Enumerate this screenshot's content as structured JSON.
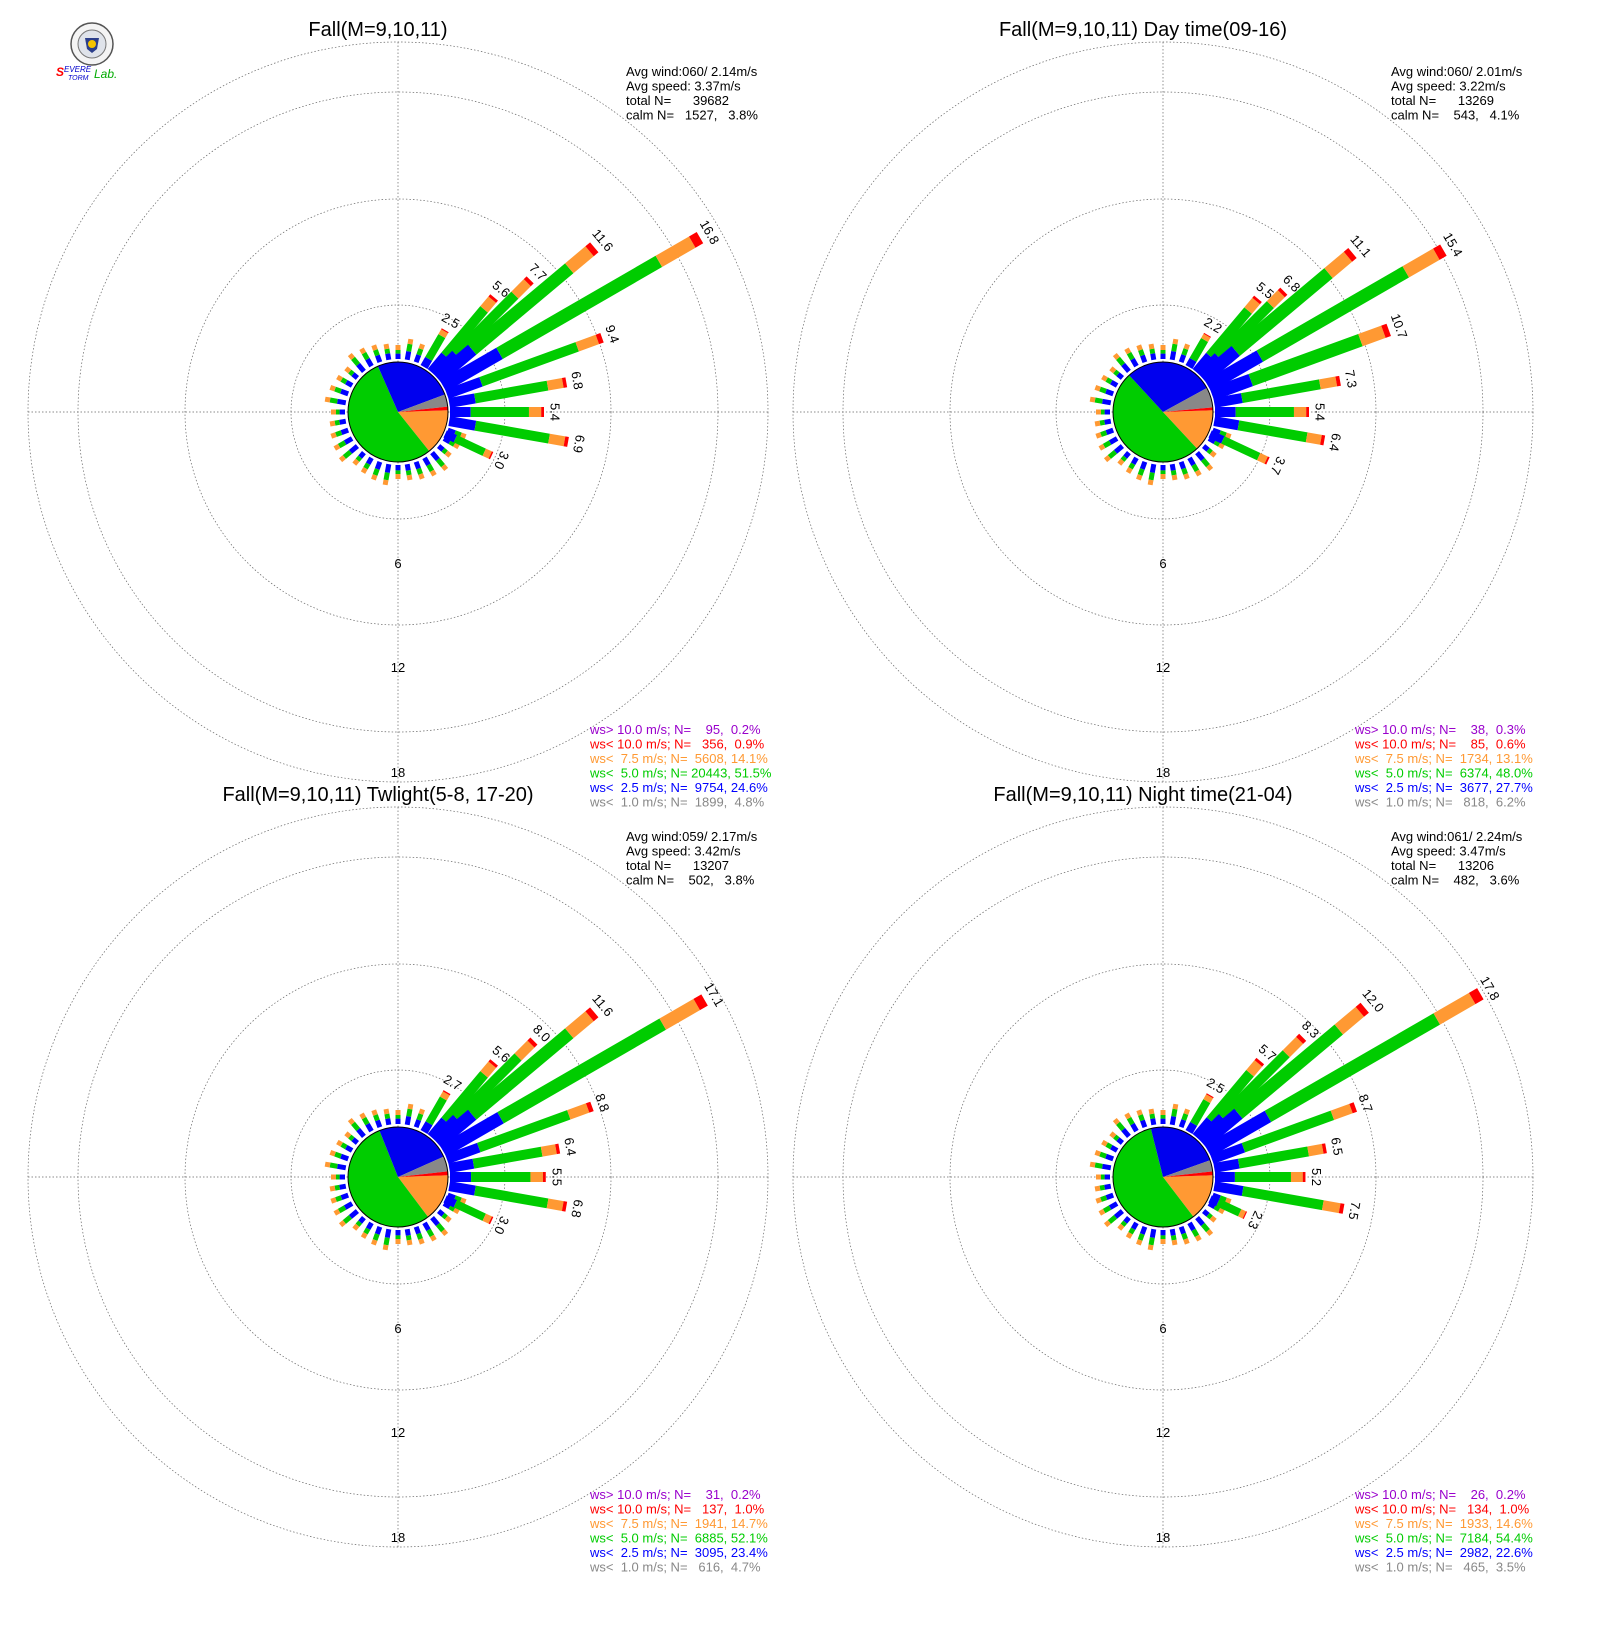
{
  "logo": {
    "text_lines": [
      "SEVERE",
      "STORM",
      "Lab."
    ]
  },
  "ring_labels": [
    "6",
    "12",
    "18"
  ],
  "colors": {
    "calm": "#888888",
    "lt2_5": "#0000ff",
    "lt5": "#00cc00",
    "lt7_5": "#ff9933",
    "lt10": "#ff0000",
    "gt10": "#9900cc",
    "wedge_blue": "#0000ee",
    "wedge_green": "#00cc00",
    "wedge_orange": "#ff9933",
    "wedge_red": "#ff0000",
    "wedge_gray": "#888888"
  },
  "chart_data": [
    {
      "type": "wind-rose",
      "title": "Fall(M=9,10,11)",
      "stats": [
        "Avg wind:060/ 2.14m/s",
        "Avg speed: 3.37m/s",
        "total N=      39682",
        "calm N=   1527,   3.8%"
      ],
      "legend": [
        {
          "text": "ws> 10.0 m/s; N=    95,  0.2%",
          "color": "#9900cc"
        },
        {
          "text": "ws< 10.0 m/s; N=   356,  0.9%",
          "color": "#ff0000"
        },
        {
          "text": "ws<  7.5 m/s; N=  5608, 14.1%",
          "color": "#ff9933"
        },
        {
          "text": "ws<  5.0 m/s; N= 20443, 51.5%",
          "color": "#00cc00"
        },
        {
          "text": "ws<  2.5 m/s; N=  9754, 24.6%",
          "color": "#0000ff"
        },
        {
          "text": "ws<  1.0 m/s; N=  1899,  4.8%",
          "color": "#888888"
        }
      ],
      "labeled_spokes": [
        {
          "dir": 30,
          "label": "2.5"
        },
        {
          "dir": 40,
          "label": "5.6"
        },
        {
          "dir": 45,
          "label": "7.7"
        },
        {
          "dir": 50,
          "label": "11.6"
        },
        {
          "dir": 60,
          "label": "16.8"
        },
        {
          "dir": 70,
          "label": "9.4"
        },
        {
          "dir": 80,
          "label": "6.8"
        },
        {
          "dir": 90,
          "label": "5.4"
        },
        {
          "dir": 100,
          "label": "6.9"
        },
        {
          "dir": 115,
          "label": "3.0"
        }
      ],
      "spokes": [
        {
          "dir": 30,
          "len": 2.5
        },
        {
          "dir": 40,
          "len": 5.6
        },
        {
          "dir": 45,
          "len": 7.7
        },
        {
          "dir": 50,
          "len": 11.6
        },
        {
          "dir": 60,
          "len": 16.8
        },
        {
          "dir": 70,
          "len": 9.4
        },
        {
          "dir": 80,
          "len": 6.8
        },
        {
          "dir": 90,
          "len": 5.4
        },
        {
          "dir": 100,
          "len": 6.9
        },
        {
          "dir": 115,
          "len": 3.0
        }
      ],
      "pie_pct": {
        "calm": 3.8,
        "lt2_5": 24.6,
        "lt5": 51.5,
        "lt7_5": 14.1,
        "lt10": 0.9,
        "gt10": 0.2
      }
    },
    {
      "type": "wind-rose",
      "title": "Fall(M=9,10,11) Day time(09-16)",
      "stats": [
        "Avg wind:060/ 2.01m/s",
        "Avg speed: 3.22m/s",
        "total N=      13269",
        "calm N=    543,   4.1%"
      ],
      "legend": [
        {
          "text": "ws> 10.0 m/s; N=    38,  0.3%",
          "color": "#9900cc"
        },
        {
          "text": "ws< 10.0 m/s; N=    85,  0.6%",
          "color": "#ff0000"
        },
        {
          "text": "ws<  7.5 m/s; N=  1734, 13.1%",
          "color": "#ff9933"
        },
        {
          "text": "ws<  5.0 m/s; N=  6374, 48.0%",
          "color": "#00cc00"
        },
        {
          "text": "ws<  2.5 m/s; N=  3677, 27.7%",
          "color": "#0000ff"
        },
        {
          "text": "ws<  1.0 m/s; N=   818,  6.2%",
          "color": "#888888"
        }
      ],
      "spokes": [
        {
          "dir": 30,
          "len": 2.2
        },
        {
          "dir": 40,
          "len": 5.5
        },
        {
          "dir": 45,
          "len": 6.8
        },
        {
          "dir": 50,
          "len": 11.1
        },
        {
          "dir": 60,
          "len": 15.4
        },
        {
          "dir": 70,
          "len": 10.7
        },
        {
          "dir": 80,
          "len": 7.3
        },
        {
          "dir": 90,
          "len": 5.4
        },
        {
          "dir": 100,
          "len": 6.4
        },
        {
          "dir": 115,
          "len": 3.7
        }
      ],
      "labeled_spokes": [
        {
          "dir": 30,
          "label": "2.2"
        },
        {
          "dir": 40,
          "label": "5.5"
        },
        {
          "dir": 45,
          "label": "6.8"
        },
        {
          "dir": 50,
          "label": "11.1"
        },
        {
          "dir": 60,
          "label": "15.4"
        },
        {
          "dir": 70,
          "label": "10.7"
        },
        {
          "dir": 80,
          "label": "7.3"
        },
        {
          "dir": 90,
          "label": "5.4"
        },
        {
          "dir": 100,
          "label": "6.4"
        },
        {
          "dir": 115,
          "label": "3.7"
        }
      ],
      "pie_pct": {
        "calm": 6.2,
        "lt2_5": 27.7,
        "lt5": 48.0,
        "lt7_5": 13.1,
        "lt10": 0.6,
        "gt10": 0.3
      }
    },
    {
      "type": "wind-rose",
      "title": "Fall(M=9,10,11) Twlight(5-8, 17-20)",
      "stats": [
        "Avg wind:059/ 2.17m/s",
        "Avg speed: 3.42m/s",
        "total N=      13207",
        "calm N=    502,   3.8%"
      ],
      "legend": [
        {
          "text": "ws> 10.0 m/s; N=    31,  0.2%",
          "color": "#9900cc"
        },
        {
          "text": "ws< 10.0 m/s; N=   137,  1.0%",
          "color": "#ff0000"
        },
        {
          "text": "ws<  7.5 m/s; N=  1941, 14.7%",
          "color": "#ff9933"
        },
        {
          "text": "ws<  5.0 m/s; N=  6885, 52.1%",
          "color": "#00cc00"
        },
        {
          "text": "ws<  2.5 m/s; N=  3095, 23.4%",
          "color": "#0000ff"
        },
        {
          "text": "ws<  1.0 m/s; N=   616,  4.7%",
          "color": "#888888"
        }
      ],
      "spokes": [
        {
          "dir": 30,
          "len": 2.7
        },
        {
          "dir": 40,
          "len": 5.6
        },
        {
          "dir": 45,
          "len": 8.0
        },
        {
          "dir": 50,
          "len": 11.6
        },
        {
          "dir": 60,
          "len": 17.1
        },
        {
          "dir": 70,
          "len": 8.8
        },
        {
          "dir": 80,
          "len": 6.4
        },
        {
          "dir": 90,
          "len": 5.5
        },
        {
          "dir": 100,
          "len": 6.8
        },
        {
          "dir": 115,
          "len": 3.0
        }
      ],
      "labeled_spokes": [
        {
          "dir": 30,
          "label": "2.7"
        },
        {
          "dir": 40,
          "label": "5.6"
        },
        {
          "dir": 45,
          "label": "8.0"
        },
        {
          "dir": 50,
          "label": "11.6"
        },
        {
          "dir": 60,
          "label": "17.1"
        },
        {
          "dir": 70,
          "label": "8.8"
        },
        {
          "dir": 80,
          "label": "6.4"
        },
        {
          "dir": 90,
          "label": "5.5"
        },
        {
          "dir": 100,
          "label": "6.8"
        },
        {
          "dir": 115,
          "label": "3.0"
        }
      ],
      "pie_pct": {
        "calm": 4.7,
        "lt2_5": 23.4,
        "lt5": 52.1,
        "lt7_5": 14.7,
        "lt10": 1.0,
        "gt10": 0.2
      }
    },
    {
      "type": "wind-rose",
      "title": "Fall(M=9,10,11) Night time(21-04)",
      "stats": [
        "Avg wind:061/ 2.24m/s",
        "Avg speed: 3.47m/s",
        "total N=      13206",
        "calm N=    482,   3.6%"
      ],
      "legend": [
        {
          "text": "ws> 10.0 m/s; N=    26,  0.2%",
          "color": "#9900cc"
        },
        {
          "text": "ws< 10.0 m/s; N=   134,  1.0%",
          "color": "#ff0000"
        },
        {
          "text": "ws<  7.5 m/s; N=  1933, 14.6%",
          "color": "#ff9933"
        },
        {
          "text": "ws<  5.0 m/s; N=  7184, 54.4%",
          "color": "#00cc00"
        },
        {
          "text": "ws<  2.5 m/s; N=  2982, 22.6%",
          "color": "#0000ff"
        },
        {
          "text": "ws<  1.0 m/s; N=   465,  3.5%",
          "color": "#888888"
        }
      ],
      "spokes": [
        {
          "dir": 30,
          "len": 2.5
        },
        {
          "dir": 40,
          "len": 5.7
        },
        {
          "dir": 45,
          "len": 8.3
        },
        {
          "dir": 50,
          "len": 12.0
        },
        {
          "dir": 60,
          "len": 17.8
        },
        {
          "dir": 70,
          "len": 8.7
        },
        {
          "dir": 80,
          "len": 6.5
        },
        {
          "dir": 90,
          "len": 5.2
        },
        {
          "dir": 100,
          "len": 7.5
        },
        {
          "dir": 115,
          "len": 2.3
        }
      ],
      "labeled_spokes": [
        {
          "dir": 30,
          "label": "2.5"
        },
        {
          "dir": 40,
          "label": "5.7"
        },
        {
          "dir": 45,
          "label": "8.3"
        },
        {
          "dir": 50,
          "label": "12.0"
        },
        {
          "dir": 60,
          "label": "17.8"
        },
        {
          "dir": 70,
          "label": "8.7"
        },
        {
          "dir": 80,
          "label": "6.5"
        },
        {
          "dir": 90,
          "label": "5.2"
        },
        {
          "dir": 100,
          "label": "7.5"
        },
        {
          "dir": 115,
          "label": "2.3"
        }
      ],
      "pie_pct": {
        "calm": 3.5,
        "lt2_5": 22.6,
        "lt5": 54.4,
        "lt7_5": 14.6,
        "lt10": 1.0,
        "gt10": 0.2
      }
    }
  ]
}
